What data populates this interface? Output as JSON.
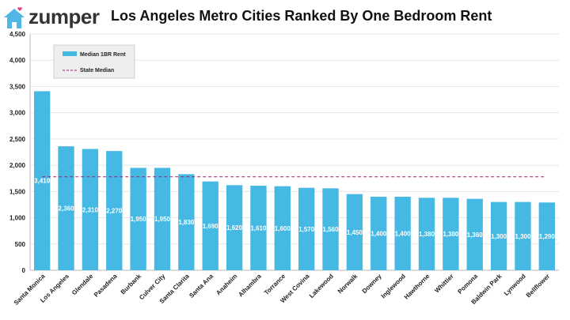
{
  "brand": {
    "name": "zumper"
  },
  "colors": {
    "bar": "#45b9e3",
    "median_line": "#a0206e",
    "logo": "#4fb6e6",
    "heart": "#e8417a"
  },
  "chart_data": {
    "type": "bar",
    "title": "Los Angeles Metro Cities Ranked By One Bedroom Rent",
    "categories": [
      "Santa Monica",
      "Los Angeles",
      "Glendale",
      "Pasadena",
      "Burbank",
      "Culver City",
      "Santa Clarita",
      "Santa Ana",
      "Anaheim",
      "Alhambra",
      "Torrance",
      "West Covina",
      "Lakewood",
      "Norwalk",
      "Downey",
      "Inglewood",
      "Hawthorne",
      "Whittier",
      "Pomona",
      "Baldwin Park",
      "Lynwood",
      "Bellflower"
    ],
    "series": [
      {
        "name": "Median 1BR Rent",
        "values": [
          3410,
          2360,
          2310,
          2270,
          1950,
          1950,
          1830,
          1690,
          1620,
          1610,
          1600,
          1570,
          1560,
          1450,
          1400,
          1400,
          1380,
          1380,
          1360,
          1300,
          1300,
          1290
        ]
      }
    ],
    "reference_line": {
      "name": "State Median",
      "value": 1780,
      "style": "dashed"
    },
    "data_labels": [
      "3,410",
      "2,360",
      "2,310",
      "2,270",
      "1,950",
      "1,950",
      "1,830",
      "1,690",
      "1,620",
      "1,610",
      "1,600",
      "1,570",
      "1,560",
      "1,450",
      "1,400",
      "1,400",
      "1,380",
      "1,380",
      "1,360",
      "1,300",
      "1,300",
      "1,290"
    ],
    "yticks": [
      0,
      500,
      1000,
      1500,
      2000,
      2500,
      3000,
      3500,
      4000,
      4500
    ],
    "ytick_labels": [
      "0",
      "500",
      "1,000",
      "1,500",
      "2,000",
      "2,500",
      "3,000",
      "3,500",
      "4,000",
      "4,500"
    ],
    "ylim": [
      0,
      4500
    ],
    "grid": true,
    "legend_placement": "top-left"
  }
}
